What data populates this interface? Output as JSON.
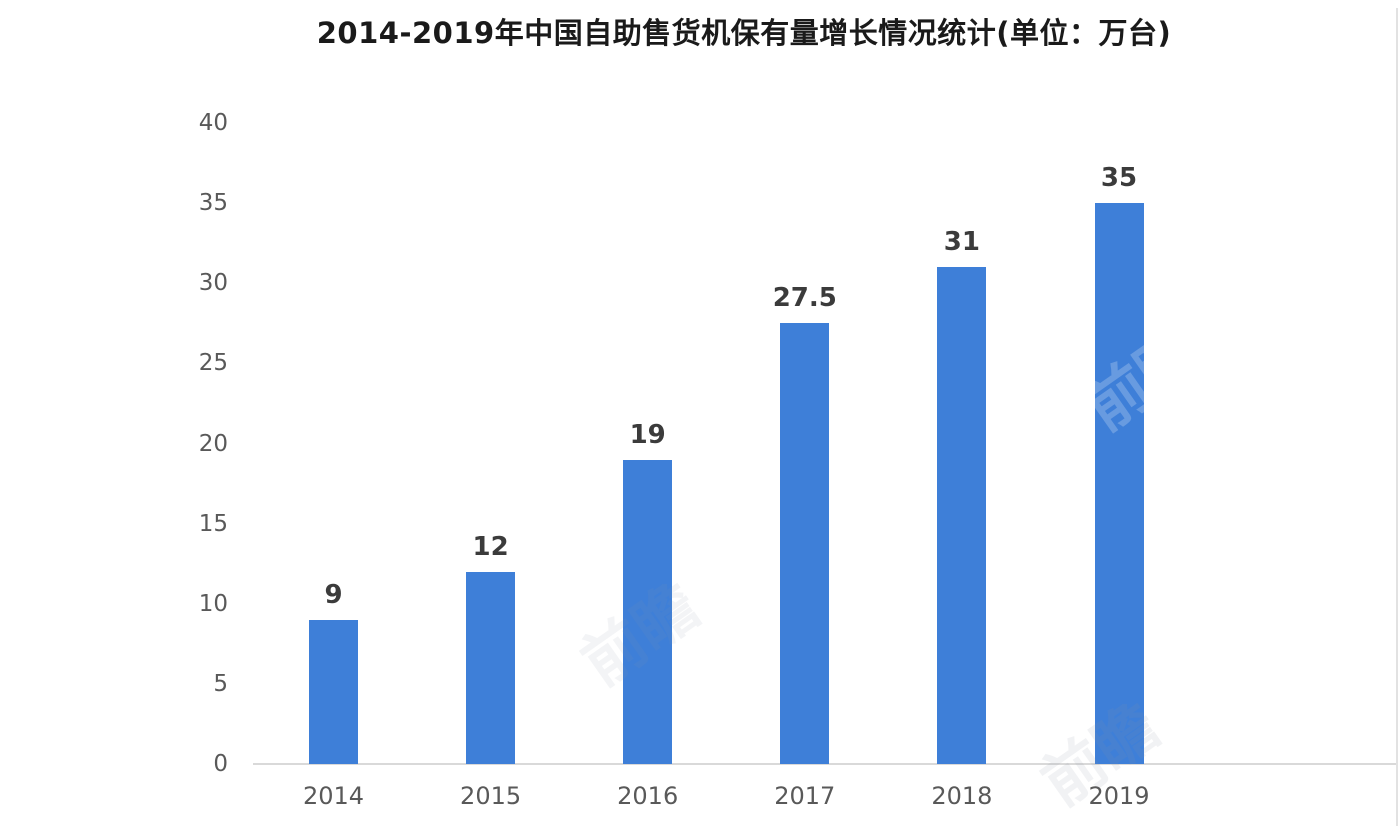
{
  "chart_data": {
    "type": "bar",
    "title": "2014-2019年中国自助售货机保有量增长情况统计(单位：万台)",
    "categories": [
      "2014",
      "2015",
      "2016",
      "2017",
      "2018",
      "2019"
    ],
    "values": [
      9,
      12,
      19,
      27.5,
      31,
      35
    ],
    "value_labels": [
      "9",
      "12",
      "19",
      "27.5",
      "31",
      "35"
    ],
    "yticks": [
      40,
      35,
      30,
      25,
      20,
      15,
      10,
      5,
      0
    ],
    "ylim": [
      0,
      40
    ],
    "xlabel": "",
    "ylabel": "",
    "grid": false,
    "legend": false,
    "bar_color": "#3E7FD8",
    "axis_line_color": "#D9D9D9",
    "tick_label_color": "#595959",
    "value_label_color": "#3B3B3B",
    "title_color": "#1A1A1A"
  },
  "watermark": {
    "text": "前瞻"
  }
}
